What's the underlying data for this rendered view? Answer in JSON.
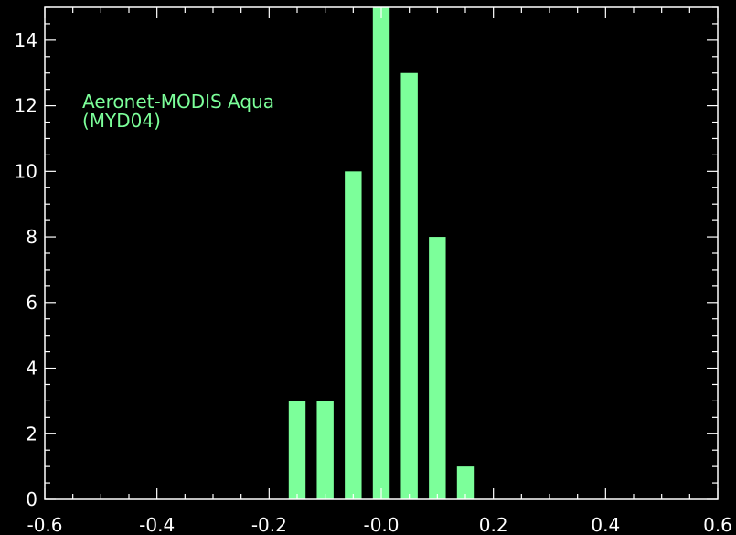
{
  "chart_data": {
    "type": "bar",
    "annotation": [
      "Aeronet-MODIS Aqua",
      "(MYD04)"
    ],
    "x": [
      -0.15,
      -0.1,
      -0.05,
      0.0,
      0.05,
      0.1,
      0.15
    ],
    "values": [
      3,
      3,
      10,
      15,
      13,
      8,
      1
    ],
    "xlim": [
      -0.6,
      0.6
    ],
    "ylim": [
      0,
      15
    ],
    "xticks": [
      -0.6,
      -0.4,
      -0.2,
      0.0,
      0.2,
      0.4,
      0.6
    ],
    "xtick_labels": [
      "-0.6",
      "-0.4",
      "-0.2",
      "-0.0",
      "0.2",
      "0.4",
      "0.6"
    ],
    "yticks": [
      0,
      2,
      4,
      6,
      8,
      10,
      12,
      14
    ],
    "ytick_labels": [
      "0",
      "2",
      "4",
      "6",
      "8",
      "10",
      "12",
      "14"
    ],
    "bar_width": 0.03,
    "xminor_step": 0.05,
    "yminor_step": 0.5,
    "colors": {
      "bar": "#7cff9a",
      "axes": "#ffffff",
      "background": "#000000",
      "annotation": "#7cff9a"
    }
  }
}
